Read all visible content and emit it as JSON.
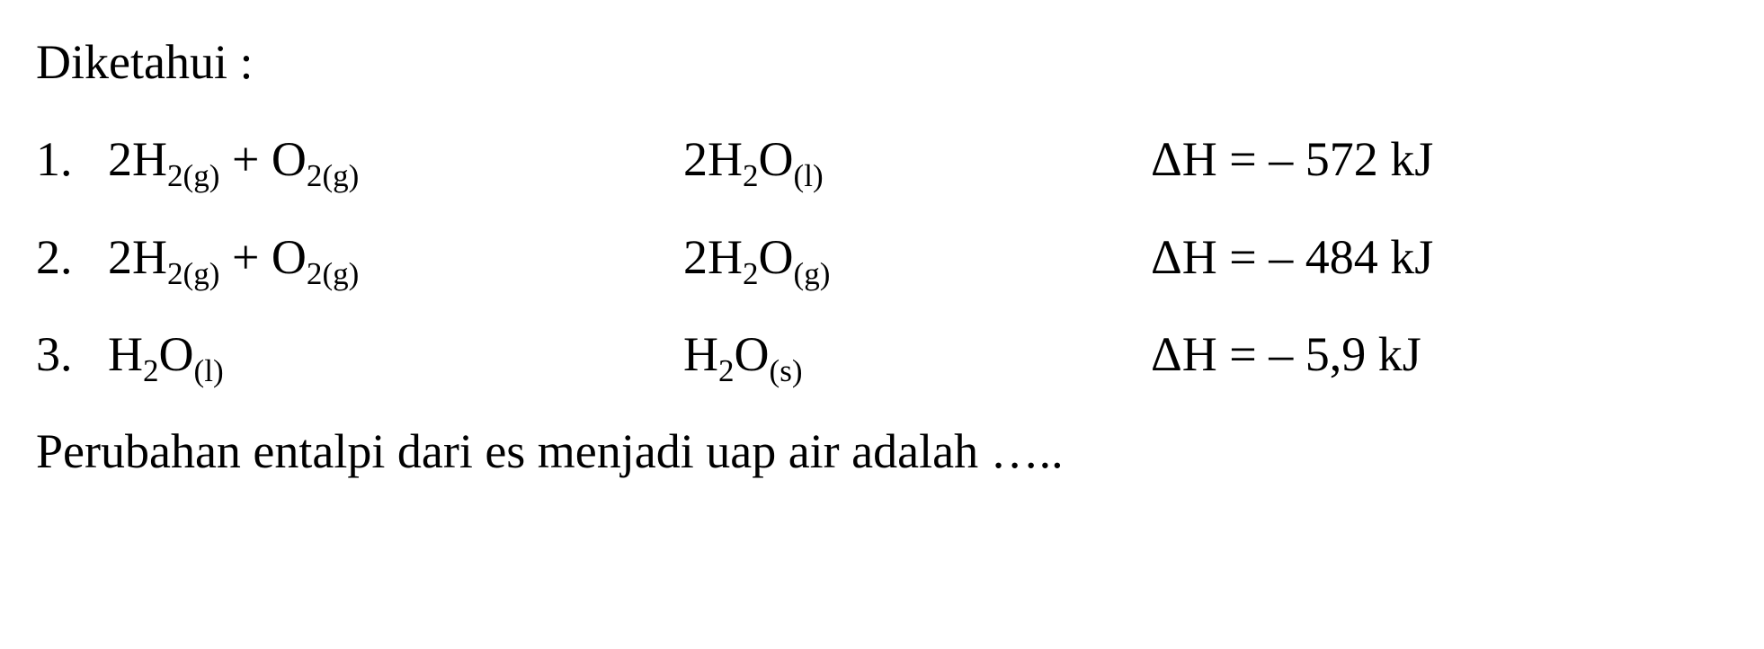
{
  "text_color": "#000000",
  "background_color": "#ffffff",
  "font_family": "Times New Roman",
  "header": "Diketahui :",
  "equations": [
    {
      "number": "1.",
      "reactant_parts": [
        "2H",
        "2(g)",
        " + O",
        "2(g)"
      ],
      "product_parts": [
        "2H",
        "2",
        "O",
        "(l)"
      ],
      "enthalpy_prefix": "ΔH = ",
      "enthalpy_value": "– 572 kJ"
    },
    {
      "number": "2.",
      "reactant_parts": [
        "2H",
        "2(g)",
        " + O",
        "2(g)"
      ],
      "product_parts": [
        "2H",
        "2",
        "O",
        "(g)"
      ],
      "enthalpy_prefix": "ΔH = ",
      "enthalpy_value": "– 484 kJ"
    },
    {
      "number": "3.",
      "reactant_parts": [
        "H",
        "2",
        "O",
        "(l)"
      ],
      "product_parts": [
        "H",
        "2",
        "O",
        "(s)"
      ],
      "enthalpy_prefix": "ΔH = ",
      "enthalpy_value": "– 5,9 kJ"
    }
  ],
  "question": "Perubahan entalpi dari es menjadi uap air adalah ….."
}
